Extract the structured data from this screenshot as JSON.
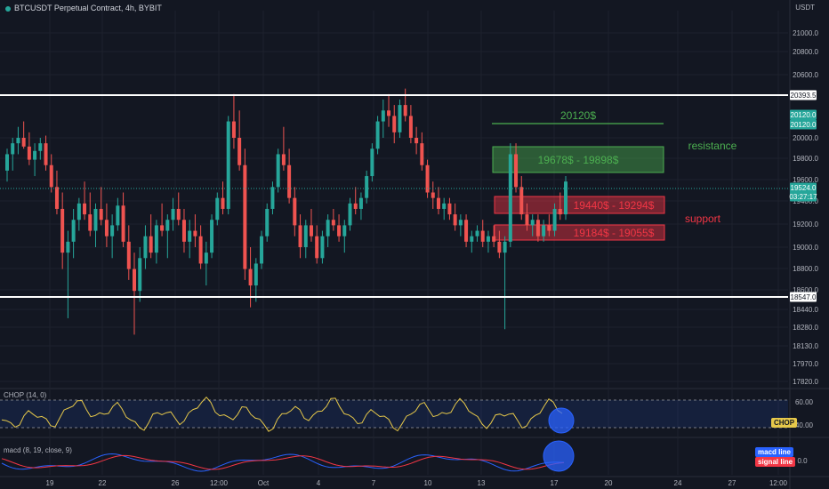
{
  "header": {
    "symbol_title": "BTCUSDT Perpetual Contract, 4h, BYBIT",
    "currency": "USDT"
  },
  "colors": {
    "background": "#131722",
    "up": "#26a69a",
    "down": "#ef5350",
    "level_line": "#ffffff",
    "resistance_text": "#4caf50",
    "support_text": "#f23645",
    "chop_line": "#e6c84a",
    "macd_line": "#2962ff",
    "signal_line": "#f23645"
  },
  "price_axis": {
    "ticks": [
      "21000.0",
      "20800.0",
      "20600.0",
      "20000.0",
      "19800.0",
      "19600.0",
      "19400.0",
      "19200.0",
      "19000.0",
      "18800.0",
      "18600.0",
      "18440.0",
      "18280.0",
      "18130.0",
      "17970.0",
      "17820.0"
    ],
    "badges": [
      {
        "text": "20393.5",
        "kind": "level"
      },
      {
        "text": "20120.0",
        "kind": "green"
      },
      {
        "text": "20120.0",
        "kind": "green"
      },
      {
        "text": "19524.0",
        "kind": "green"
      },
      {
        "text": "03:27:17",
        "kind": "green"
      },
      {
        "text": "18547.0",
        "kind": "level"
      }
    ]
  },
  "time_axis": {
    "labels": [
      "19",
      "22",
      "26",
      "12:00",
      "Oct",
      "4",
      "7",
      "10",
      "13",
      "17",
      "20",
      "24",
      "27",
      "12:00"
    ]
  },
  "annotations": {
    "target_label": "20120$",
    "resistance_zone": "19678$ - 19898$",
    "support_zone_1": "19440$ - 19294$",
    "support_zone_2": "19184$ - 19055$",
    "resistance_word": "resistance",
    "support_word": "support"
  },
  "chop_pane": {
    "label": "CHOP (14, 0)",
    "ticks": [
      "60.00",
      "40.00"
    ],
    "badge": "CHOP"
  },
  "macd_pane": {
    "label": "macd (8, 19, close, 9)",
    "ticks": [
      "0.0"
    ],
    "macd_badge": "macd line",
    "signal_badge": "signal line"
  },
  "chart_data": {
    "type": "candlestick",
    "timeframe": "4h",
    "horizontal_levels": [
      20393.5,
      18547.0
    ],
    "target_level": 20120.0,
    "last_price": 19524.0,
    "zones": [
      {
        "label": "19678$ - 19898$",
        "high": 19898,
        "low": 19678,
        "role": "resistance"
      },
      {
        "label": "19440$ - 19294$",
        "high": 19440,
        "low": 19294,
        "role": "support"
      },
      {
        "label": "19184$ - 19055$",
        "high": 19184,
        "low": 19055,
        "role": "support"
      }
    ],
    "ohlc": [
      [
        19700,
        19900,
        19600,
        19850
      ],
      [
        19850,
        20000,
        19700,
        19950
      ],
      [
        19950,
        20100,
        19850,
        20000
      ],
      [
        20000,
        20150,
        19900,
        19920
      ],
      [
        19920,
        20050,
        19750,
        19800
      ],
      [
        19800,
        19950,
        19650,
        19880
      ],
      [
        19880,
        20000,
        19800,
        19950
      ],
      [
        19950,
        20020,
        19700,
        19750
      ],
      [
        19750,
        19850,
        19500,
        19550
      ],
      [
        19550,
        19700,
        19300,
        19350
      ],
      [
        19350,
        19500,
        18800,
        18950
      ],
      [
        18950,
        19150,
        18350,
        19050
      ],
      [
        19050,
        19350,
        18900,
        19250
      ],
      [
        19250,
        19450,
        19150,
        19400
      ],
      [
        19400,
        19600,
        19250,
        19300
      ],
      [
        19300,
        19500,
        19100,
        19150
      ],
      [
        19150,
        19400,
        19000,
        19350
      ],
      [
        19350,
        19550,
        19200,
        19250
      ],
      [
        19250,
        19400,
        19000,
        19100
      ],
      [
        19100,
        19300,
        18900,
        19200
      ],
      [
        19200,
        19450,
        19150,
        19380
      ],
      [
        19380,
        19500,
        19000,
        19050
      ],
      [
        19050,
        19200,
        18700,
        18800
      ],
      [
        18800,
        18950,
        18200,
        18600
      ],
      [
        18600,
        19000,
        18500,
        18900
      ],
      [
        18900,
        19200,
        18800,
        19100
      ],
      [
        19100,
        19300,
        18900,
        18950
      ],
      [
        18950,
        19250,
        18850,
        19200
      ],
      [
        19200,
        19400,
        19100,
        19150
      ],
      [
        19150,
        19300,
        18900,
        19250
      ],
      [
        19250,
        19450,
        19150,
        19350
      ],
      [
        19350,
        19500,
        19200,
        19250
      ],
      [
        19250,
        19350,
        18950,
        19050
      ],
      [
        19050,
        19250,
        18900,
        19150
      ],
      [
        19150,
        19300,
        19000,
        19100
      ],
      [
        19100,
        19200,
        18800,
        18850
      ],
      [
        18850,
        19050,
        18650,
        18950
      ],
      [
        18950,
        19300,
        18900,
        19250
      ],
      [
        19250,
        19500,
        19200,
        19450
      ],
      [
        19450,
        19600,
        19300,
        19350
      ],
      [
        19350,
        20200,
        19300,
        20150
      ],
      [
        20150,
        20400,
        19900,
        20000
      ],
      [
        20000,
        20250,
        19700,
        19750
      ],
      [
        19750,
        19900,
        18700,
        18800
      ],
      [
        18800,
        19000,
        18450,
        18650
      ],
      [
        18650,
        18900,
        18500,
        18850
      ],
      [
        18850,
        19150,
        18800,
        19100
      ],
      [
        19100,
        19400,
        19050,
        19350
      ],
      [
        19350,
        19600,
        19300,
        19550
      ],
      [
        19550,
        19900,
        19500,
        19850
      ],
      [
        19850,
        20100,
        19700,
        19750
      ],
      [
        19750,
        19900,
        19400,
        19450
      ],
      [
        19450,
        19550,
        19100,
        19200
      ],
      [
        19200,
        19300,
        18900,
        19000
      ],
      [
        19000,
        19250,
        18900,
        19200
      ],
      [
        19200,
        19350,
        19050,
        19100
      ],
      [
        19100,
        19200,
        18850,
        18900
      ],
      [
        18900,
        19150,
        18850,
        19100
      ],
      [
        19100,
        19300,
        19000,
        19250
      ],
      [
        19250,
        19350,
        19150,
        19200
      ],
      [
        19200,
        19300,
        19050,
        19100
      ],
      [
        19100,
        19250,
        18950,
        19200
      ],
      [
        19200,
        19450,
        19150,
        19400
      ],
      [
        19400,
        19550,
        19300,
        19350
      ],
      [
        19350,
        19500,
        19250,
        19450
      ],
      [
        19450,
        19700,
        19400,
        19650
      ],
      [
        19650,
        19950,
        19600,
        19900
      ],
      [
        19900,
        20200,
        19850,
        20150
      ],
      [
        20150,
        20350,
        20000,
        20250
      ],
      [
        20250,
        20400,
        20100,
        20200
      ],
      [
        20200,
        20300,
        19950,
        20050
      ],
      [
        20050,
        20350,
        20000,
        20300
      ],
      [
        20300,
        20450,
        20150,
        20200
      ],
      [
        20200,
        20300,
        19950,
        20000
      ],
      [
        20000,
        20100,
        19850,
        19950
      ],
      [
        19950,
        20050,
        19700,
        19750
      ],
      [
        19750,
        19800,
        19450,
        19500
      ],
      [
        19500,
        19600,
        19350,
        19450
      ],
      [
        19450,
        19550,
        19300,
        19350
      ],
      [
        19350,
        19450,
        19250,
        19400
      ],
      [
        19400,
        19450,
        19250,
        19300
      ],
      [
        19300,
        19400,
        19150,
        19200
      ],
      [
        19200,
        19300,
        19100,
        19250
      ],
      [
        19250,
        19300,
        19000,
        19050
      ],
      [
        19050,
        19150,
        18950,
        19100
      ],
      [
        19100,
        19200,
        19050,
        19150
      ],
      [
        19150,
        19250,
        19000,
        19050
      ],
      [
        19050,
        19150,
        18950,
        19100
      ],
      [
        19100,
        19200,
        19000,
        19050
      ],
      [
        19050,
        19150,
        18900,
        18950
      ],
      [
        18950,
        19100,
        18250,
        19050
      ],
      [
        19050,
        19950,
        19000,
        19850
      ],
      [
        19850,
        19950,
        19500,
        19550
      ],
      [
        19550,
        19650,
        19250,
        19300
      ],
      [
        19300,
        19400,
        19150,
        19200
      ],
      [
        19200,
        19300,
        19100,
        19250
      ],
      [
        19250,
        19300,
        19050,
        19100
      ],
      [
        19100,
        19250,
        19050,
        19200
      ],
      [
        19200,
        19300,
        19100,
        19150
      ],
      [
        19150,
        19400,
        19100,
        19350
      ],
      [
        19350,
        19500,
        19250,
        19300
      ],
      [
        19300,
        19650,
        19250,
        19600
      ]
    ]
  }
}
